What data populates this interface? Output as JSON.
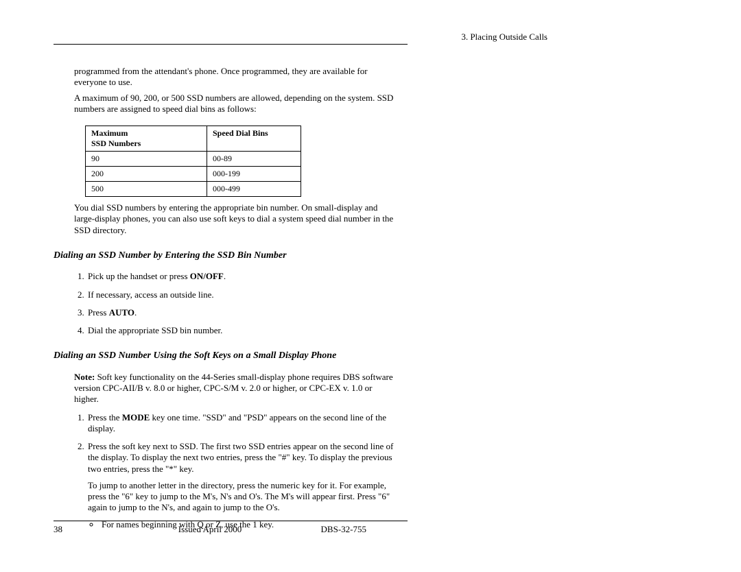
{
  "header": {
    "chapter": "3. Placing Outside Calls"
  },
  "intro": {
    "p1": "programmed from the attendant's phone. Once programmed, they are available for everyone to use.",
    "p2": "A maximum of 90, 200, or 500 SSD numbers are allowed, depending on the system. SSD numbers are assigned to speed dial bins as follows:"
  },
  "table": {
    "header1a": "Maximum",
    "header1b": "SSD Numbers",
    "header2": "Speed Dial Bins",
    "rows": [
      {
        "max": "90",
        "bins": "00-89"
      },
      {
        "max": "200",
        "bins": "000-199"
      },
      {
        "max": "500",
        "bins": "000-499"
      }
    ]
  },
  "after_table": "You dial SSD numbers by entering the appropriate bin number. On small-display and large-display phones, you can also use soft keys to dial a system speed dial number in the SSD directory.",
  "section1": {
    "title": "Dialing an SSD Number by Entering the SSD Bin Number",
    "steps": {
      "s1_pre": "Pick up the handset or press ",
      "s1_bold": "ON/OFF",
      "s1_post": ".",
      "s2": "If necessary, access an outside line.",
      "s3_pre": "Press ",
      "s3_bold": "AUTO",
      "s3_post": ".",
      "s4": "Dial the appropriate SSD bin number."
    }
  },
  "section2": {
    "title": "Dialing an SSD Number Using the Soft Keys on a Small Display Phone",
    "note_label": "Note:",
    "note_text": "  Soft key functionality on the 44-Series small-display phone requires DBS software version CPC-AII/B v. 8.0 or higher, CPC-S/M v. 2.0 or higher, or CPC-EX v. 1.0 or higher.",
    "steps": {
      "s1_pre": "Press the ",
      "s1_bold": "MODE",
      "s1_post": " key one time. \"SSD\" and \"PSD\" appears on the second line of the display.",
      "s2": "Press the soft key next to SSD. The first two SSD entries appear on the second line of the display. To display the next two entries, press the \"#\" key. To display the previous two entries, press the \"*\" key.",
      "s2_sub": "To jump to another letter in the directory, press the numeric key for it. For example, press the \"6\" key to jump to the M's, N's and O's. The M's will appear first. Press \"6\" again to jump to the N's, and again to jump to the O's.",
      "bullet1": "For names beginning with Q or Z, use the 1 key."
    }
  },
  "footer": {
    "page": "38",
    "issued": "Issued April 2000",
    "doc": "DBS-32-755"
  }
}
